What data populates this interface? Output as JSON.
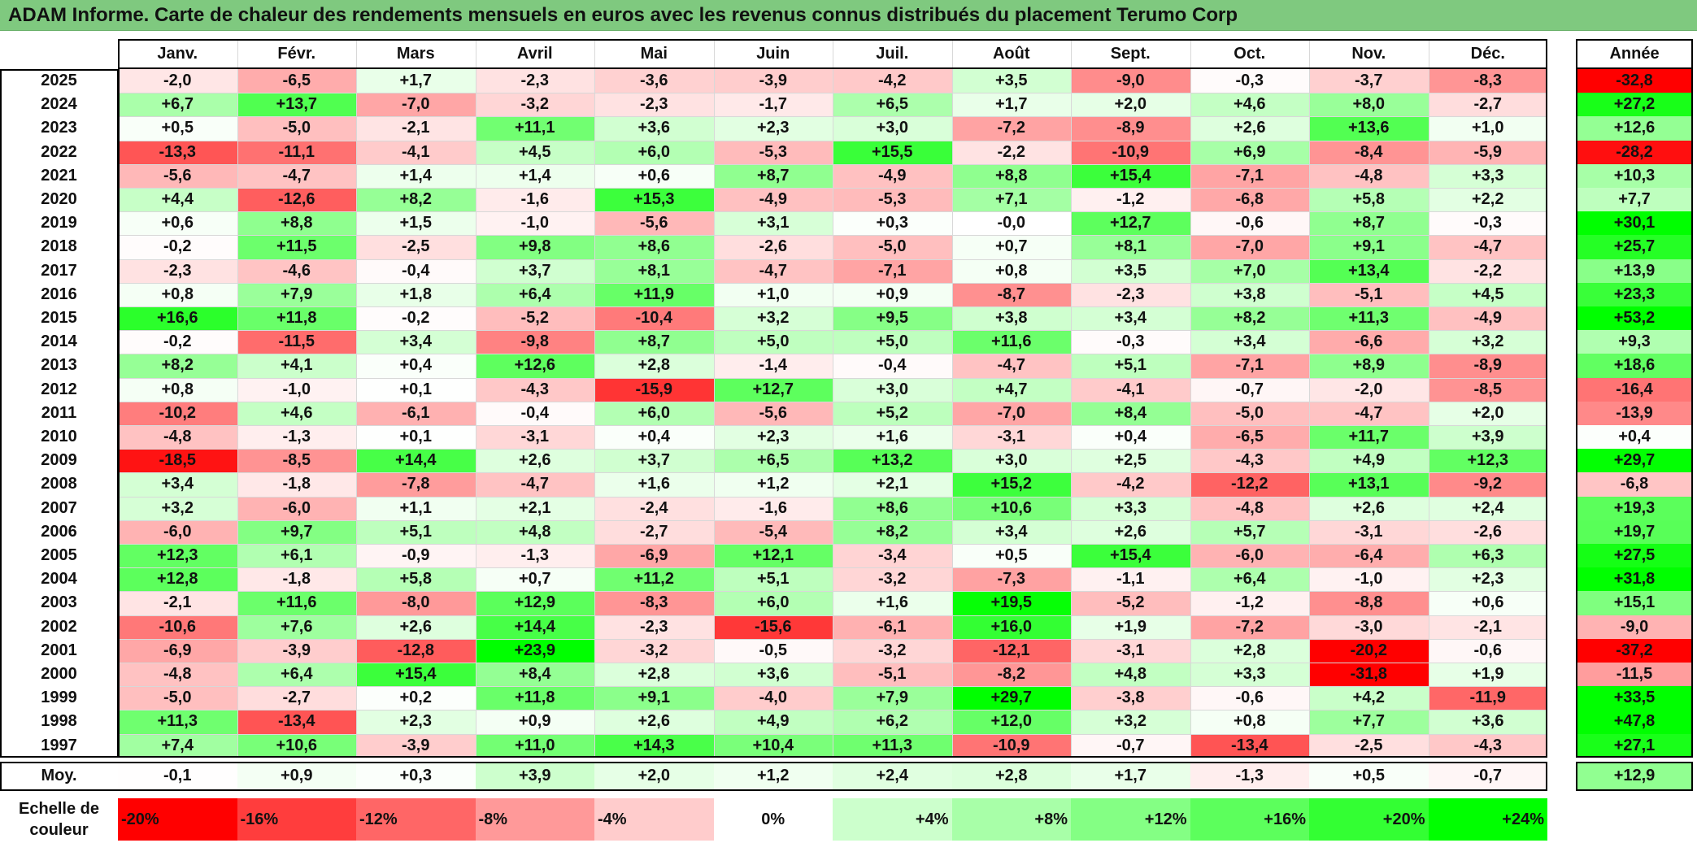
{
  "title": "ADAM Informe. Carte de chaleur des rendements mensuels en euros avec les revenus connus distribués du placement Terumo Corp",
  "chart_data": {
    "type": "heatmap",
    "title": "ADAM Informe. Carte de chaleur des rendements mensuels en euros avec les revenus connus distribués du placement Terumo Corp",
    "months": [
      "Janv.",
      "Févr.",
      "Mars",
      "Avril",
      "Mai",
      "Juin",
      "Juil.",
      "Août",
      "Sept.",
      "Oct.",
      "Nov.",
      "Déc."
    ],
    "year_header": "Année",
    "rows": [
      {
        "year": "2025",
        "values": [
          "-2,0",
          "-6,5",
          "+1,7",
          "-2,3",
          "-3,6",
          "-3,9",
          "-4,2",
          "+3,5",
          "-9,0",
          "-0,3",
          "-3,7",
          "-8,3"
        ],
        "annual": "-32,8"
      },
      {
        "year": "2024",
        "values": [
          "+6,7",
          "+13,7",
          "-7,0",
          "-3,2",
          "-2,3",
          "-1,7",
          "+6,5",
          "+1,7",
          "+2,0",
          "+4,6",
          "+8,0",
          "-2,7"
        ],
        "annual": "+27,2"
      },
      {
        "year": "2023",
        "values": [
          "+0,5",
          "-5,0",
          "-2,1",
          "+11,1",
          "+3,6",
          "+2,3",
          "+3,0",
          "-7,2",
          "-8,9",
          "+2,6",
          "+13,6",
          "+1,0"
        ],
        "annual": "+12,6"
      },
      {
        "year": "2022",
        "values": [
          "-13,3",
          "-11,1",
          "-4,1",
          "+4,5",
          "+6,0",
          "-5,3",
          "+15,5",
          "-2,2",
          "-10,9",
          "+6,9",
          "-8,4",
          "-5,9"
        ],
        "annual": "-28,2"
      },
      {
        "year": "2021",
        "values": [
          "-5,6",
          "-4,7",
          "+1,4",
          "+1,4",
          "+0,6",
          "+8,7",
          "-4,9",
          "+8,8",
          "+15,4",
          "-7,1",
          "-4,8",
          "+3,3"
        ],
        "annual": "+10,3"
      },
      {
        "year": "2020",
        "values": [
          "+4,4",
          "-12,6",
          "+8,2",
          "-1,6",
          "+15,3",
          "-4,9",
          "-5,3",
          "+7,1",
          "-1,2",
          "-6,8",
          "+5,8",
          "+2,2"
        ],
        "annual": "+7,7"
      },
      {
        "year": "2019",
        "values": [
          "+0,6",
          "+8,8",
          "+1,5",
          "-1,0",
          "-5,6",
          "+3,1",
          "+0,3",
          "-0,0",
          "+12,7",
          "-0,6",
          "+8,7",
          "-0,3"
        ],
        "annual": "+30,1"
      },
      {
        "year": "2018",
        "values": [
          "-0,2",
          "+11,5",
          "-2,5",
          "+9,8",
          "+8,6",
          "-2,6",
          "-5,0",
          "+0,7",
          "+8,1",
          "-7,0",
          "+9,1",
          "-4,7"
        ],
        "annual": "+25,7"
      },
      {
        "year": "2017",
        "values": [
          "-2,3",
          "-4,6",
          "-0,4",
          "+3,7",
          "+8,1",
          "-4,7",
          "-7,1",
          "+0,8",
          "+3,5",
          "+7,0",
          "+13,4",
          "-2,2"
        ],
        "annual": "+13,9"
      },
      {
        "year": "2016",
        "values": [
          "+0,8",
          "+7,9",
          "+1,8",
          "+6,4",
          "+11,9",
          "+1,0",
          "+0,9",
          "-8,7",
          "-2,3",
          "+3,8",
          "-5,1",
          "+4,5"
        ],
        "annual": "+23,3"
      },
      {
        "year": "2015",
        "values": [
          "+16,6",
          "+11,8",
          "-0,2",
          "-5,2",
          "-10,4",
          "+3,2",
          "+9,5",
          "+3,8",
          "+3,4",
          "+8,2",
          "+11,3",
          "-4,9"
        ],
        "annual": "+53,2"
      },
      {
        "year": "2014",
        "values": [
          "-0,2",
          "-11,5",
          "+3,4",
          "-9,8",
          "+8,7",
          "+5,0",
          "+5,0",
          "+11,6",
          "-0,3",
          "+3,4",
          "-6,6",
          "+3,2"
        ],
        "annual": "+9,3"
      },
      {
        "year": "2013",
        "values": [
          "+8,2",
          "+4,1",
          "+0,4",
          "+12,6",
          "+2,8",
          "-1,4",
          "-0,4",
          "-4,7",
          "+5,1",
          "-7,1",
          "+8,9",
          "-8,9"
        ],
        "annual": "+18,6"
      },
      {
        "year": "2012",
        "values": [
          "+0,8",
          "-1,0",
          "+0,1",
          "-4,3",
          "-15,9",
          "+12,7",
          "+3,0",
          "+4,7",
          "-4,1",
          "-0,7",
          "-2,0",
          "-8,5"
        ],
        "annual": "-16,4"
      },
      {
        "year": "2011",
        "values": [
          "-10,2",
          "+4,6",
          "-6,1",
          "-0,4",
          "+6,0",
          "-5,6",
          "+5,2",
          "-7,0",
          "+8,4",
          "-5,0",
          "-4,7",
          "+2,0"
        ],
        "annual": "-13,9"
      },
      {
        "year": "2010",
        "values": [
          "-4,8",
          "-1,3",
          "+0,1",
          "-3,1",
          "+0,4",
          "+2,3",
          "+1,6",
          "-3,1",
          "+0,4",
          "-6,5",
          "+11,7",
          "+3,9"
        ],
        "annual": "+0,4"
      },
      {
        "year": "2009",
        "values": [
          "-18,5",
          "-8,5",
          "+14,4",
          "+2,6",
          "+3,7",
          "+6,5",
          "+13,2",
          "+3,0",
          "+2,5",
          "-4,3",
          "+4,9",
          "+12,3"
        ],
        "annual": "+29,7"
      },
      {
        "year": "2008",
        "values": [
          "+3,4",
          "-1,8",
          "-7,8",
          "-4,7",
          "+1,6",
          "+1,2",
          "+2,1",
          "+15,2",
          "-4,2",
          "-12,2",
          "+13,1",
          "-9,2"
        ],
        "annual": "-6,8"
      },
      {
        "year": "2007",
        "values": [
          "+3,2",
          "-6,0",
          "+1,1",
          "+2,1",
          "-2,4",
          "-1,6",
          "+8,6",
          "+10,6",
          "+3,3",
          "-4,8",
          "+2,6",
          "+2,4"
        ],
        "annual": "+19,3"
      },
      {
        "year": "2006",
        "values": [
          "-6,0",
          "+9,7",
          "+5,1",
          "+4,8",
          "-2,7",
          "-5,4",
          "+8,2",
          "+3,4",
          "+2,6",
          "+5,7",
          "-3,1",
          "-2,6"
        ],
        "annual": "+19,7"
      },
      {
        "year": "2005",
        "values": [
          "+12,3",
          "+6,1",
          "-0,9",
          "-1,3",
          "-6,9",
          "+12,1",
          "-3,4",
          "+0,5",
          "+15,4",
          "-6,0",
          "-6,4",
          "+6,3"
        ],
        "annual": "+27,5"
      },
      {
        "year": "2004",
        "values": [
          "+12,8",
          "-1,8",
          "+5,8",
          "+0,7",
          "+11,2",
          "+5,1",
          "-3,2",
          "-7,3",
          "-1,1",
          "+6,4",
          "-1,0",
          "+2,3"
        ],
        "annual": "+31,8"
      },
      {
        "year": "2003",
        "values": [
          "-2,1",
          "+11,6",
          "-8,0",
          "+12,9",
          "-8,3",
          "+6,0",
          "+1,6",
          "+19,5",
          "-5,2",
          "-1,2",
          "-8,8",
          "+0,6"
        ],
        "annual": "+15,1"
      },
      {
        "year": "2002",
        "values": [
          "-10,6",
          "+7,6",
          "+2,6",
          "+14,4",
          "-2,3",
          "-15,6",
          "-6,1",
          "+16,0",
          "+1,9",
          "-7,2",
          "-3,0",
          "-2,1"
        ],
        "annual": "-9,0"
      },
      {
        "year": "2001",
        "values": [
          "-6,9",
          "-3,9",
          "-12,8",
          "+23,9",
          "-3,2",
          "-0,5",
          "-3,2",
          "-12,1",
          "-3,1",
          "+2,8",
          "-20,2",
          "-0,6"
        ],
        "annual": "-37,2"
      },
      {
        "year": "2000",
        "values": [
          "-4,8",
          "+6,4",
          "+15,4",
          "+8,4",
          "+2,8",
          "+3,6",
          "-5,1",
          "-8,2",
          "+4,8",
          "+3,3",
          "-31,8",
          "+1,9"
        ],
        "annual": "-11,5"
      },
      {
        "year": "1999",
        "values": [
          "-5,0",
          "-2,7",
          "+0,2",
          "+11,8",
          "+9,1",
          "-4,0",
          "+7,9",
          "+29,7",
          "-3,8",
          "-0,6",
          "+4,2",
          "-11,9"
        ],
        "annual": "+33,5"
      },
      {
        "year": "1998",
        "values": [
          "+11,3",
          "-13,4",
          "+2,3",
          "+0,9",
          "+2,6",
          "+4,9",
          "+6,2",
          "+12,0",
          "+3,2",
          "+0,8",
          "+7,7",
          "+3,6"
        ],
        "annual": "+47,8"
      },
      {
        "year": "1997",
        "values": [
          "+7,4",
          "+10,6",
          "-3,9",
          "+11,0",
          "+14,3",
          "+10,4",
          "+11,3",
          "-10,9",
          "-0,7",
          "-13,4",
          "-2,5",
          "-4,3"
        ],
        "annual": "+27,1"
      }
    ],
    "average_label": "Moy.",
    "averages": [
      "-0,1",
      "+0,9",
      "+0,3",
      "+3,9",
      "+2,0",
      "+1,2",
      "+2,4",
      "+2,8",
      "+1,7",
      "-1,3",
      "+0,5",
      "-0,7"
    ],
    "average_annual": "+12,9",
    "legend_label_line1": "Echelle de",
    "legend_label_line2": "couleur",
    "legend": [
      {
        "label": "-20%",
        "color": "#ff0000",
        "align": "left"
      },
      {
        "label": "-16%",
        "color": "#ff3d3d",
        "align": "left"
      },
      {
        "label": "-12%",
        "color": "#ff6666",
        "align": "left"
      },
      {
        "label": "-8%",
        "color": "#ff9999",
        "align": "left"
      },
      {
        "label": "-4%",
        "color": "#ffcccc",
        "align": "left"
      },
      {
        "label": "0%",
        "color": "#ffffff",
        "align": "center"
      },
      {
        "label": "+4%",
        "color": "#ccffcc",
        "align": "right"
      },
      {
        "label": "+8%",
        "color": "#a8ffa8",
        "align": "right"
      },
      {
        "label": "+12%",
        "color": "#84ff84",
        "align": "right"
      },
      {
        "label": "+16%",
        "color": "#5cff5c",
        "align": "right"
      },
      {
        "label": "+20%",
        "color": "#33ff33",
        "align": "right"
      },
      {
        "label": "+24%",
        "color": "#00ff00",
        "align": "right"
      }
    ],
    "colors": {
      "negative_max": "#ff0000",
      "positive_max": "#00ff00",
      "neutral": "#ffffff",
      "title_bar": "#7fc97f"
    }
  }
}
